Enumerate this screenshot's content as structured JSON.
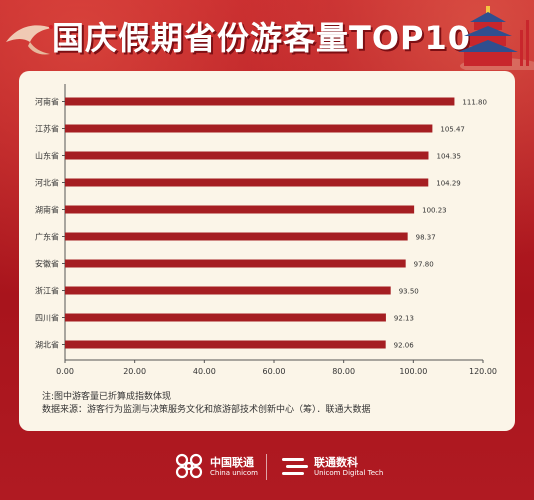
{
  "title": "国庆假期省份游客量TOP10",
  "colors": {
    "bar": "#a51e22",
    "background": "#b51d24",
    "card": "#fbf5e8",
    "title": "#ffffff"
  },
  "chart_data": {
    "type": "bar",
    "orientation": "horizontal",
    "categories": [
      "河南省",
      "江苏省",
      "山东省",
      "河北省",
      "湖南省",
      "广东省",
      "安徽省",
      "浙江省",
      "四川省",
      "湖北省"
    ],
    "values": [
      111.8,
      105.47,
      104.35,
      104.29,
      100.23,
      98.37,
      97.8,
      93.5,
      92.13,
      92.06
    ],
    "value_labels": [
      "111.80",
      "105.47",
      "104.35",
      "104.29",
      "100.23",
      "98.37",
      "97.80",
      "93.50",
      "92.13",
      "92.06"
    ],
    "x_ticks": [
      "0.00",
      "20.00",
      "40.00",
      "60.00",
      "80.00",
      "100.00",
      "120.00"
    ],
    "xlim": [
      0,
      120
    ],
    "grid": false,
    "legend": "none"
  },
  "notes": {
    "line1": "注:图中游客量已折算成指数体现",
    "line2": "数据来源：游客行为监测与决策服务文化和旅游部技术创新中心（筹）．联通大数据"
  },
  "footer": {
    "brand1_name": "中国联通",
    "brand1_en": "China unicom",
    "brand2_name": "联通数科",
    "brand2_en": "Unicom Digital Tech"
  },
  "icons": [
    "crane-icon",
    "temple-icon",
    "china-unicom-logo-icon",
    "unicom-digital-logo-icon"
  ]
}
